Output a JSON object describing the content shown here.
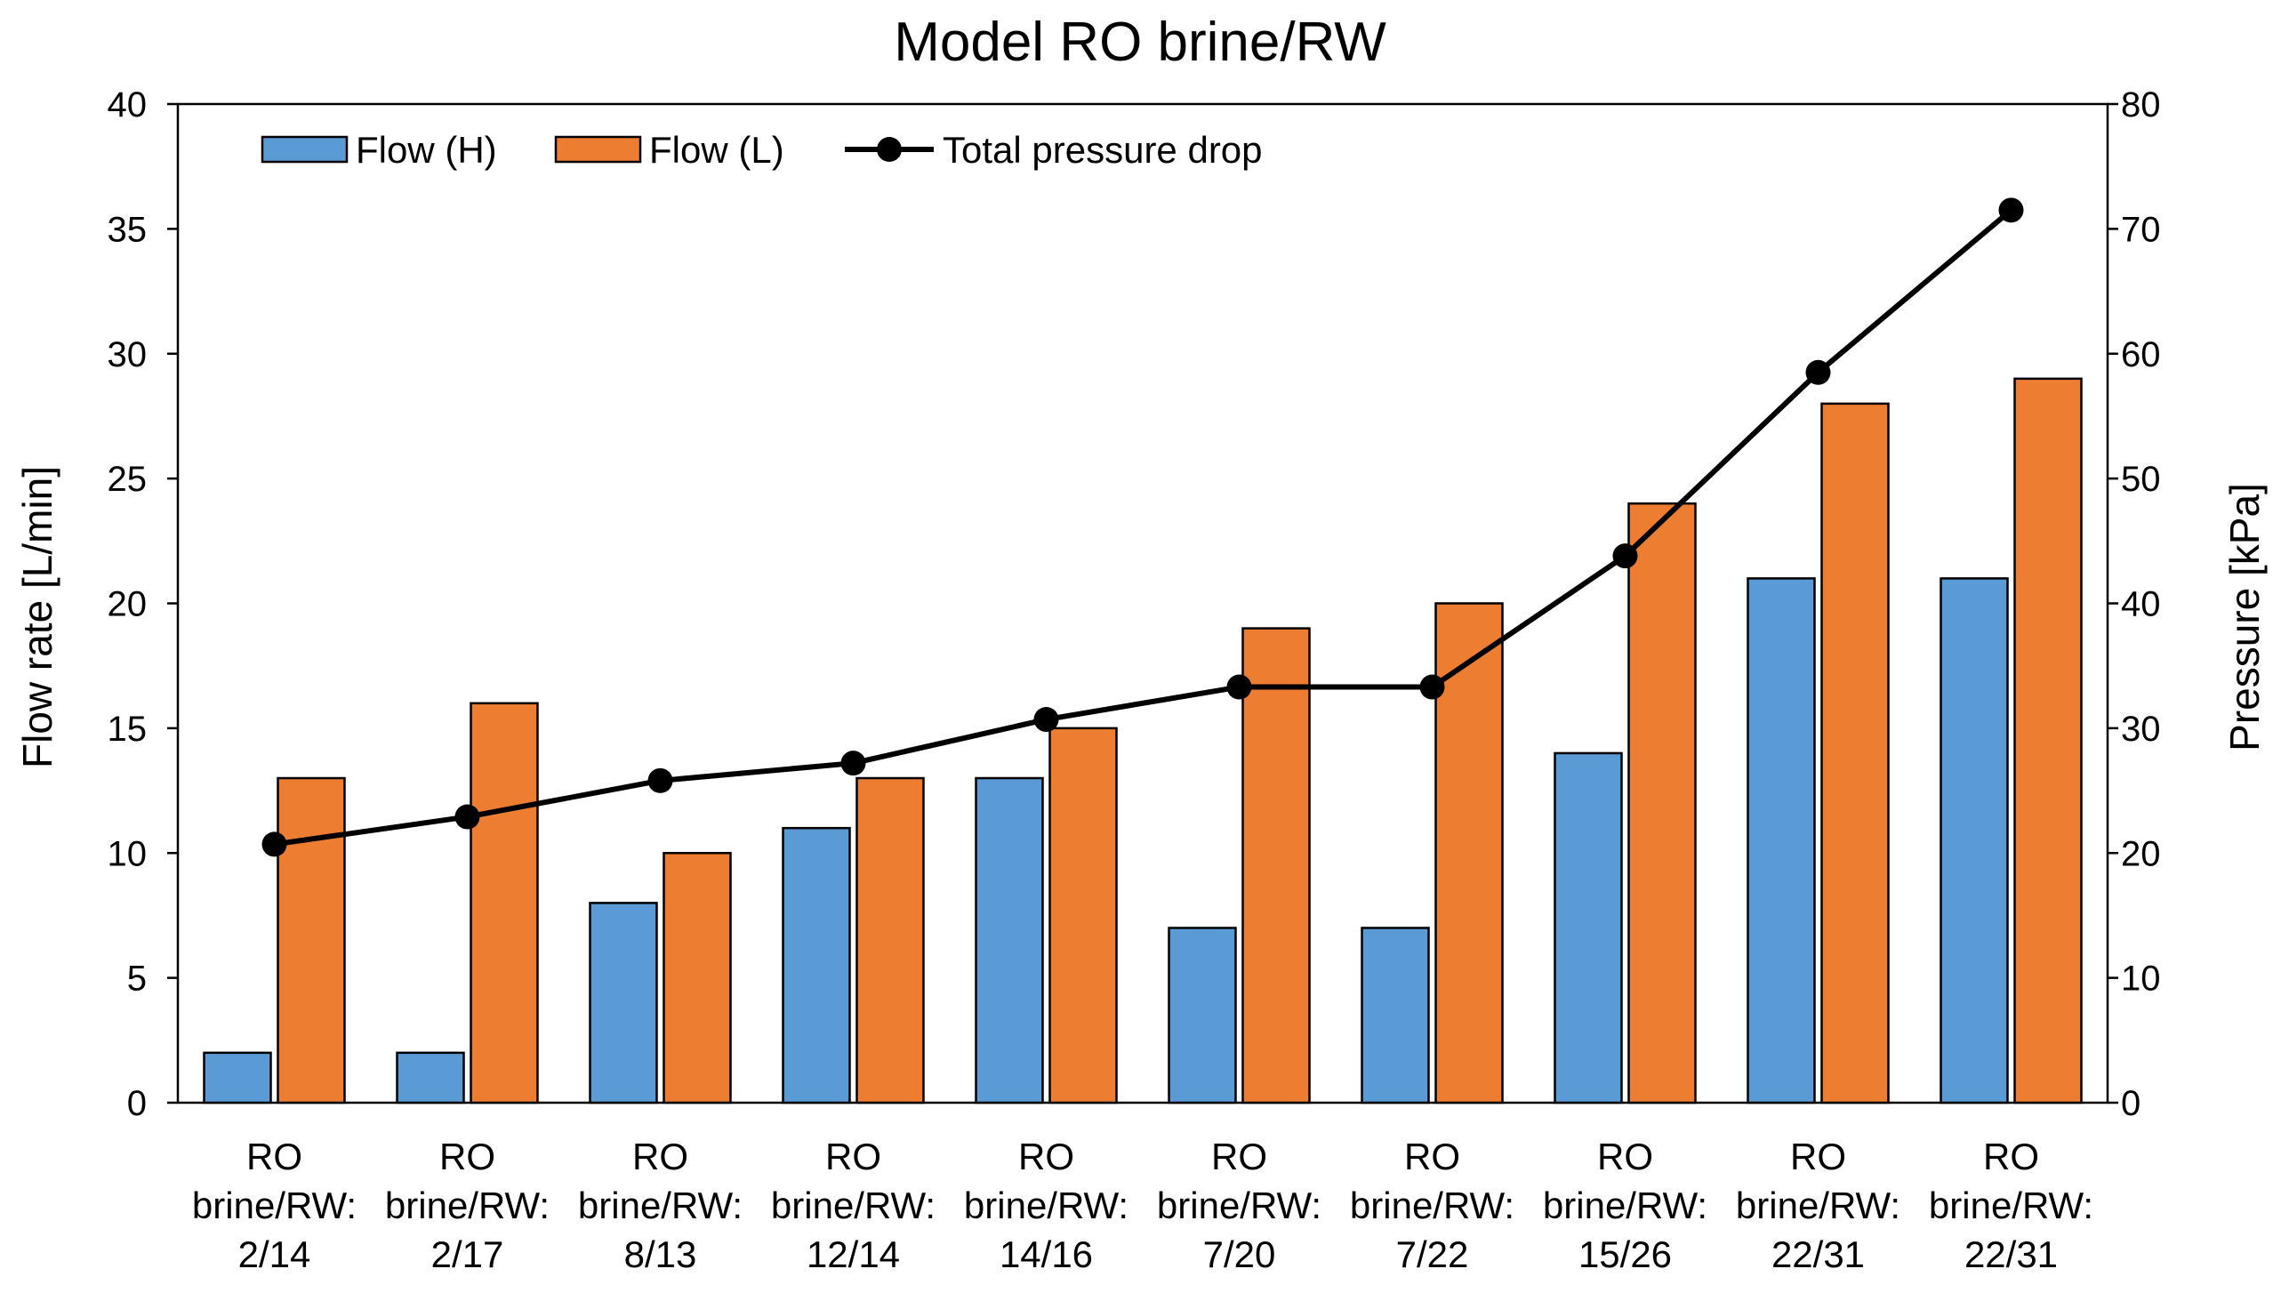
{
  "chart_data": {
    "type": "bar",
    "title": "Model RO brine/RW",
    "categories": [
      [
        "RO",
        "brine/RW:",
        "2/14"
      ],
      [
        "RO",
        "brine/RW:",
        "2/17"
      ],
      [
        "RO",
        "brine/RW:",
        "8/13"
      ],
      [
        "RO",
        "brine/RW:",
        "12/14"
      ],
      [
        "RO",
        "brine/RW:",
        "14/16"
      ],
      [
        "RO",
        "brine/RW:",
        "7/20"
      ],
      [
        "RO",
        "brine/RW:",
        "7/22"
      ],
      [
        "RO",
        "brine/RW:",
        "15/26"
      ],
      [
        "RO",
        "brine/RW:",
        "22/31"
      ],
      [
        "RO",
        "brine/RW:",
        "22/31"
      ]
    ],
    "series": [
      {
        "name": "Flow (H)",
        "kind": "bar",
        "axis": "left",
        "color": "#5B9BD5",
        "values": [
          2,
          2,
          8,
          11,
          13,
          7,
          7,
          14,
          21,
          21
        ]
      },
      {
        "name": "Flow (L)",
        "kind": "bar",
        "axis": "left",
        "color": "#ED7D31",
        "values": [
          13,
          16,
          10,
          13,
          15,
          19,
          20,
          24,
          28,
          29
        ]
      },
      {
        "name": "Total pressure drop",
        "kind": "line",
        "axis": "right",
        "color": "#000000",
        "values": [
          20.7,
          22.9,
          25.8,
          27.2,
          30.7,
          33.3,
          33.3,
          43.8,
          58.5,
          71.5
        ]
      }
    ],
    "ylabel": "Flow rate [L/min]",
    "ylim": [
      0,
      40
    ],
    "yticks": [
      0,
      5,
      10,
      15,
      20,
      25,
      30,
      35,
      40
    ],
    "y2label": "Pressure [kPa]",
    "y2lim": [
      0,
      80
    ],
    "y2ticks": [
      0,
      10,
      20,
      30,
      40,
      50,
      60,
      70,
      80
    ],
    "grid": false,
    "legend_position": "top-left"
  }
}
